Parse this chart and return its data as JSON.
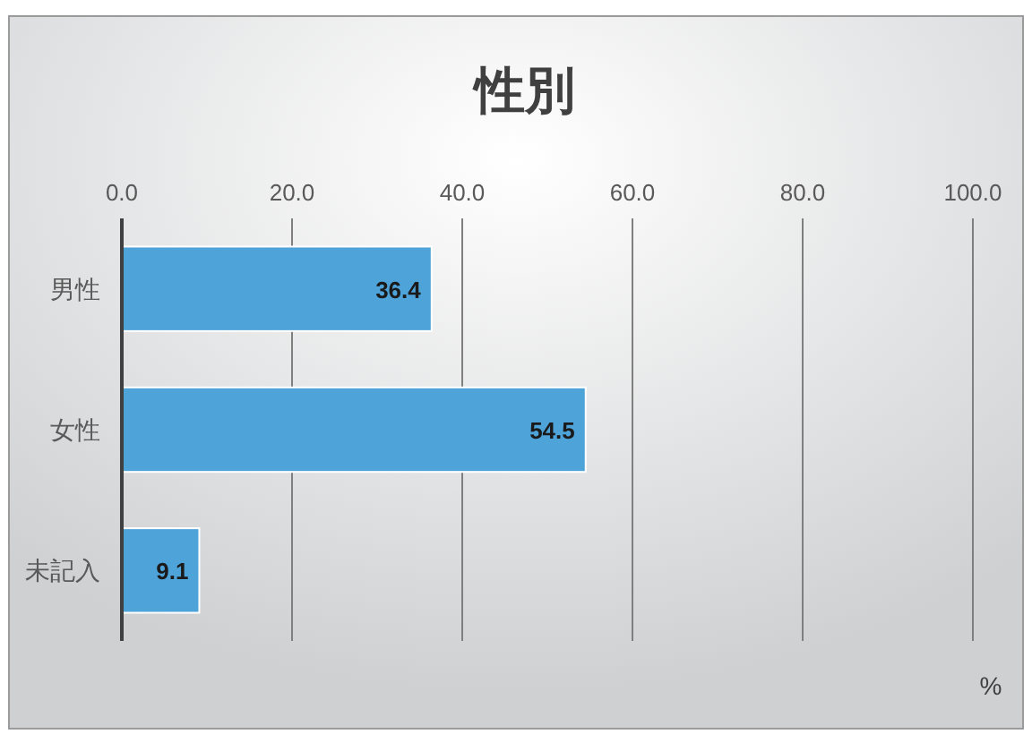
{
  "chart_data": {
    "type": "bar",
    "title": "性別",
    "orientation": "horizontal",
    "categories": [
      "男性",
      "女性",
      "未記入"
    ],
    "values": [
      36.4,
      54.5,
      9.1
    ],
    "color": "#4ea3d8",
    "xlim": [
      0,
      100
    ],
    "xticks": [
      {
        "value": 0,
        "label": "0.0"
      },
      {
        "value": 20,
        "label": "20.0"
      },
      {
        "value": 40,
        "label": "40.0"
      },
      {
        "value": 60,
        "label": "60.0"
      },
      {
        "value": 80,
        "label": "80.0"
      },
      {
        "value": 100,
        "label": "100.0"
      }
    ],
    "grid": "x",
    "data_labels": true,
    "annotations": [
      "%"
    ]
  }
}
